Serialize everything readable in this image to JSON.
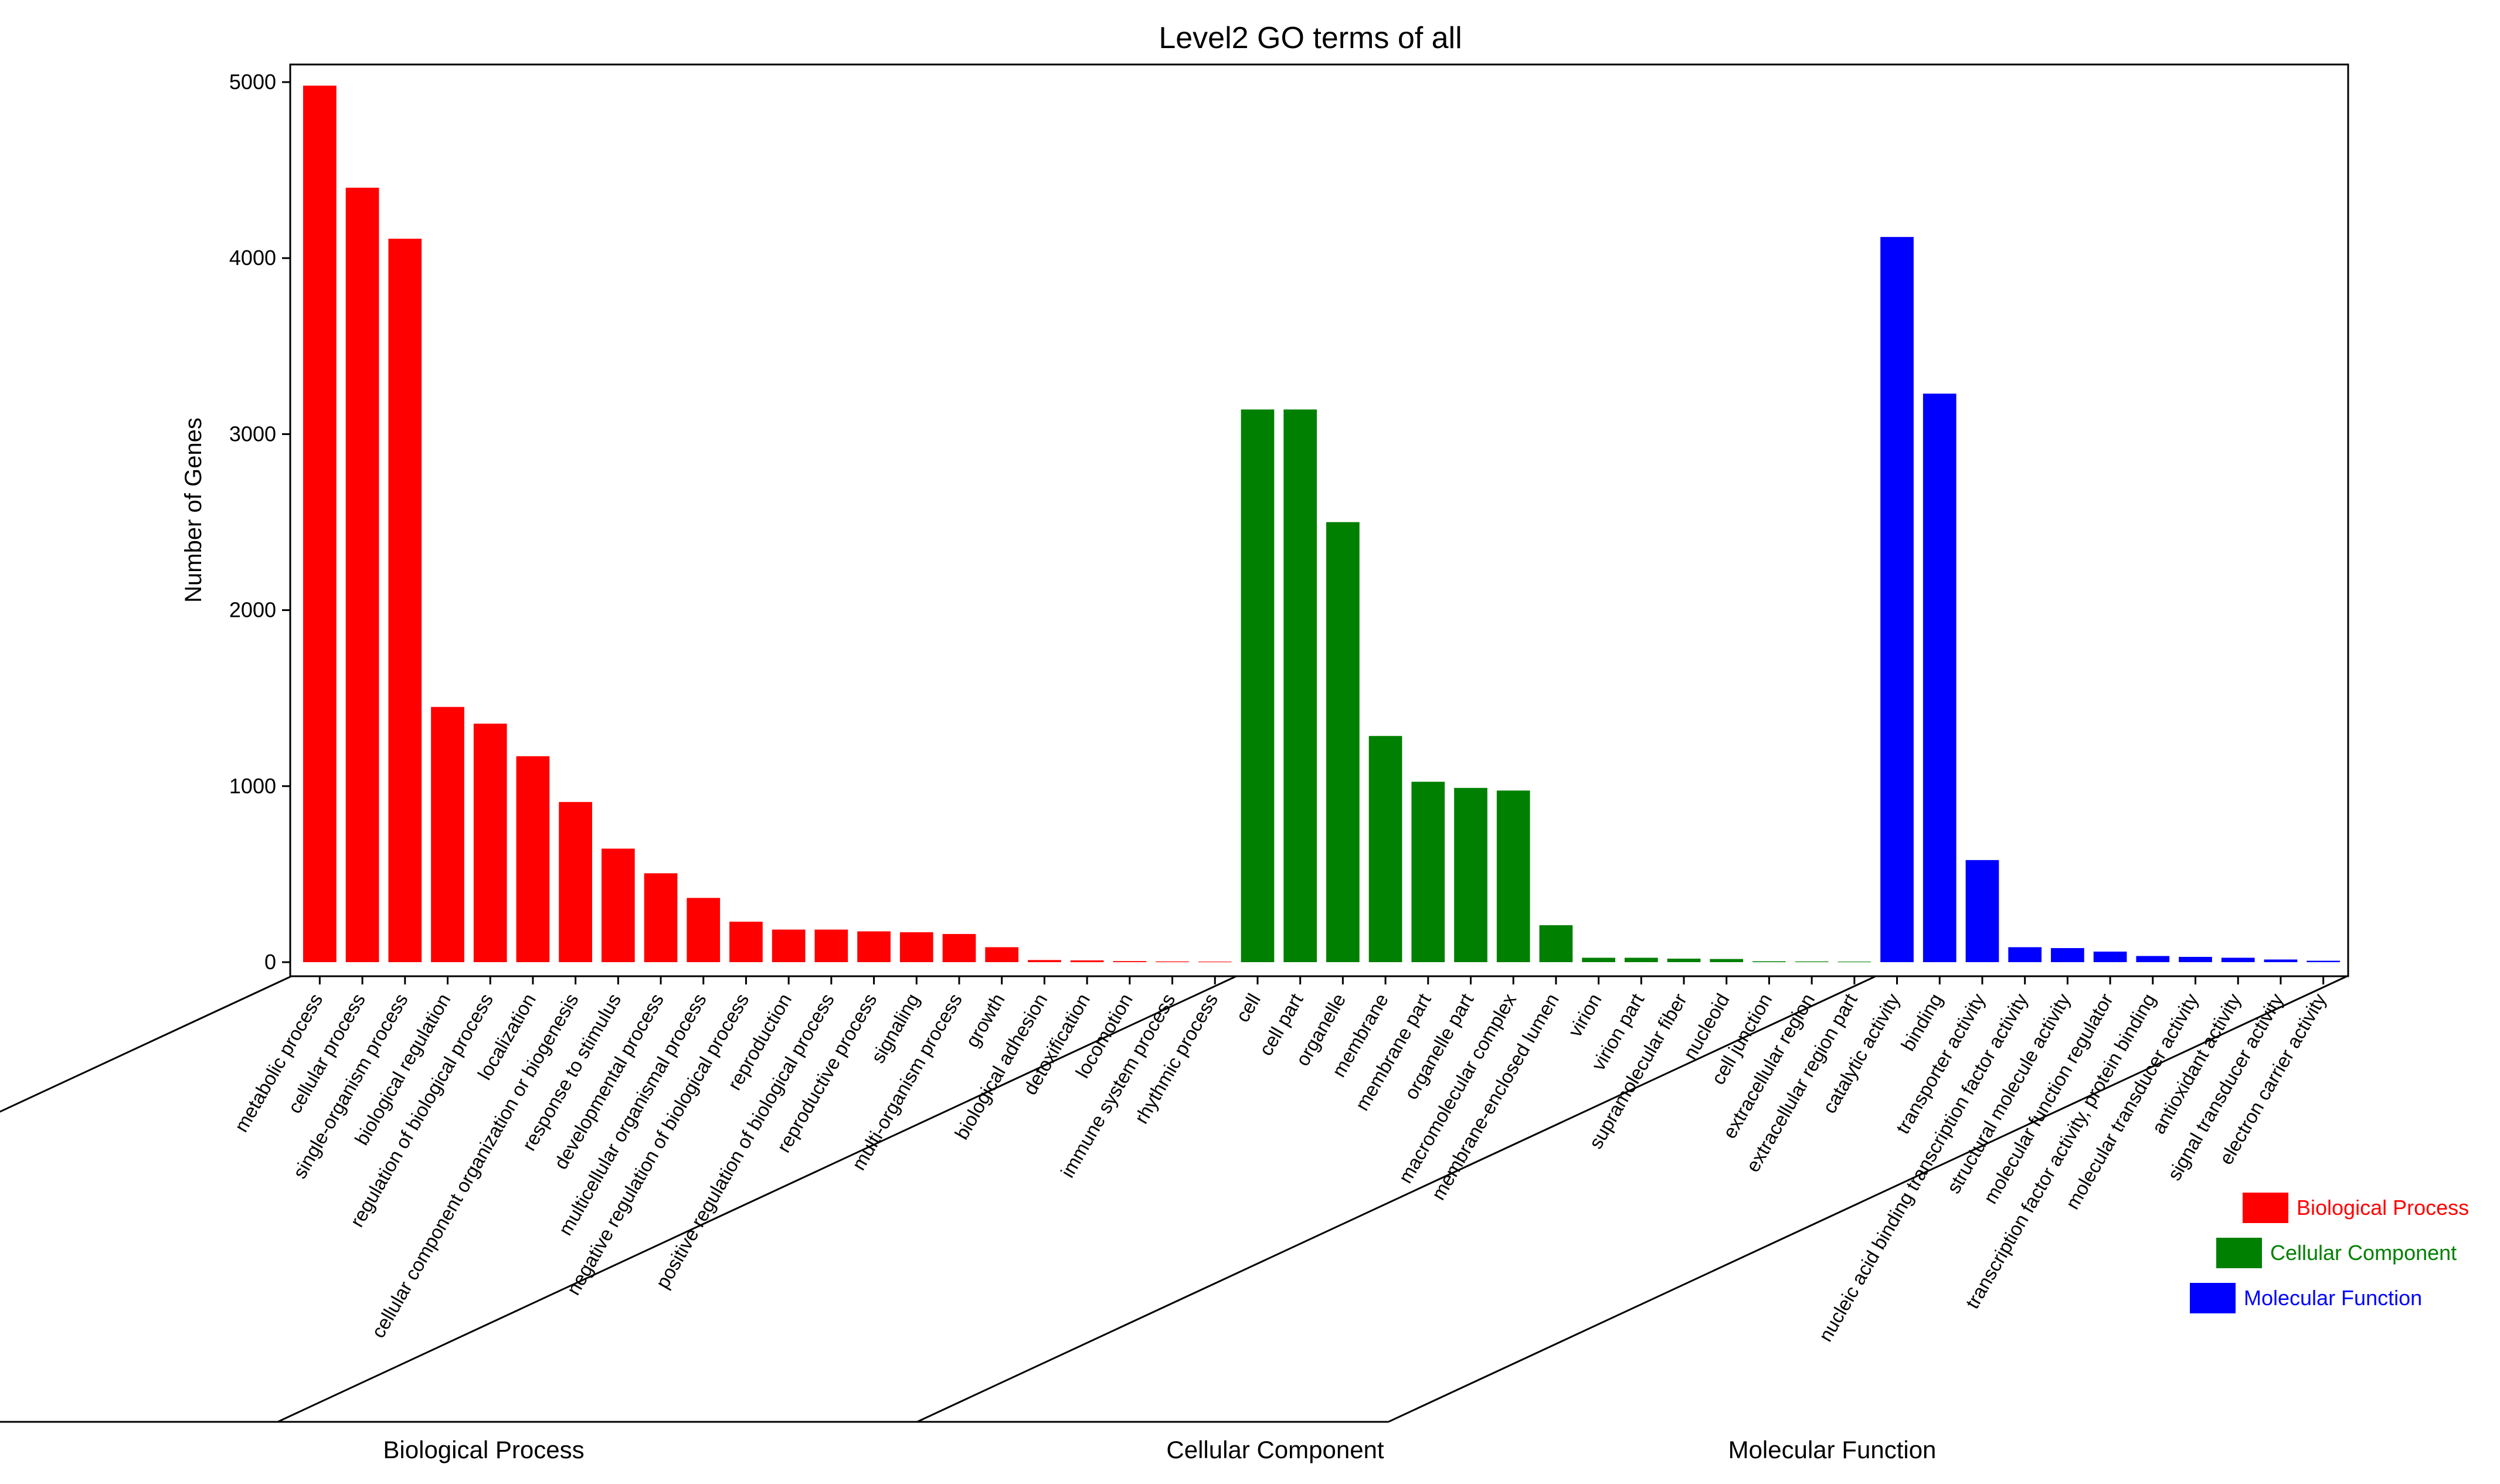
{
  "chart_data": {
    "type": "bar",
    "title": "Level2 GO terms of all",
    "xlabel": "",
    "ylabel": "Number of Genes",
    "ylim": [
      -80,
      5100
    ],
    "yticks": [
      0,
      1000,
      2000,
      3000,
      4000,
      5000
    ],
    "grid": false,
    "legend_position": "right",
    "groups": [
      {
        "name": "Biological Process",
        "color": "#ff0000",
        "categories": [
          "metabolic process",
          "cellular process",
          "single-organism process",
          "biological regulation",
          "regulation of biological process",
          "localization",
          "cellular component organization or biogenesis",
          "response to stimulus",
          "developmental process",
          "multicellular organismal process",
          "negative regulation of biological process",
          "reproduction",
          "positive regulation of biological process",
          "reproductive process",
          "signaling",
          "multi-organism process",
          "growth",
          "biological adhesion",
          "detoxification",
          "locomotion",
          "immune system process",
          "rhythmic process"
        ],
        "values": [
          4980,
          4400,
          4110,
          1450,
          1355,
          1170,
          910,
          645,
          505,
          365,
          230,
          185,
          185,
          175,
          170,
          160,
          85,
          12,
          10,
          6,
          4,
          3
        ]
      },
      {
        "name": "Cellular Component",
        "color": "#008000",
        "categories": [
          "cell",
          "cell part",
          "organelle",
          "membrane",
          "membrane part",
          "organelle part",
          "macromolecular complex",
          "membrane-enclosed lumen",
          "virion",
          "virion part",
          "supramolecular fiber",
          "nucleoid",
          "cell junction",
          "extracellular region",
          "extracellular region part"
        ],
        "values": [
          3140,
          3140,
          2500,
          1285,
          1025,
          990,
          975,
          210,
          25,
          25,
          20,
          18,
          5,
          4,
          3
        ]
      },
      {
        "name": "Molecular Function",
        "color": "#0000ff",
        "categories": [
          "catalytic activity",
          "binding",
          "transporter activity",
          "nucleic acid binding transcription factor activity",
          "structural molecule activity",
          "molecular function regulator",
          "transcription factor activity, protein binding",
          "molecular transducer activity",
          "antioxidant activity",
          "signal transducer activity",
          "electron carrier activity"
        ],
        "values": [
          4120,
          3230,
          580,
          85,
          80,
          60,
          35,
          30,
          25,
          15,
          8
        ]
      }
    ]
  }
}
